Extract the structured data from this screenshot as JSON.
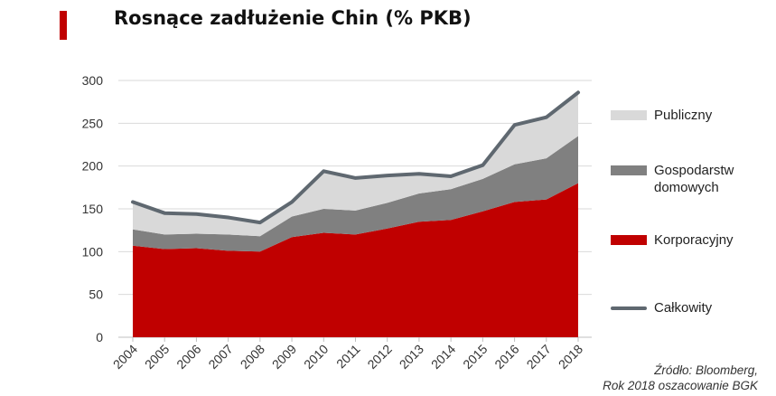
{
  "title": "Rosnące zadłużenie Chin (% PKB)",
  "source_line1": "Źródło: Bloomberg,",
  "source_line2": "Rok 2018 oszacowanie BGK",
  "colors": {
    "accent": "#c00000",
    "public": "#d9d9d9",
    "households": "#808080",
    "corporate": "#c00000",
    "total": "#5f6870"
  },
  "chart_data": {
    "type": "area",
    "title": "Rosnące zadłużenie Chin (% PKB)",
    "x": [
      "2004",
      "2005",
      "2006",
      "2007",
      "2008",
      "2009",
      "2010",
      "2011",
      "2012",
      "2013",
      "2014",
      "2015",
      "2016",
      "2017",
      "2018"
    ],
    "ylim": [
      0,
      300
    ],
    "yticks": [
      0,
      50,
      100,
      150,
      200,
      250,
      300
    ],
    "stacked": true,
    "legend_position": "right",
    "grid": "horizontal",
    "series": [
      {
        "name": "Korporacyjny",
        "kind": "area",
        "color": "#c00000",
        "values": [
          107,
          103,
          104,
          101,
          100,
          117,
          122,
          120,
          127,
          135,
          137,
          147,
          158,
          161,
          180
        ]
      },
      {
        "name": "Gospodarstw domowych",
        "kind": "area",
        "color": "#808080",
        "values": [
          19,
          17,
          17,
          19,
          18,
          24,
          28,
          28,
          30,
          33,
          36,
          38,
          44,
          48,
          55
        ]
      },
      {
        "name": "Publiczny",
        "kind": "area",
        "color": "#d9d9d9",
        "values": [
          32,
          25,
          23,
          20,
          16,
          17,
          44,
          38,
          32,
          23,
          15,
          16,
          46,
          48,
          51
        ]
      },
      {
        "name": "Całkowity",
        "kind": "line",
        "color": "#5f6870",
        "values": [
          158,
          145,
          144,
          140,
          134,
          158,
          194,
          186,
          189,
          191,
          188,
          201,
          248,
          257,
          286
        ]
      }
    ]
  },
  "legend": [
    {
      "label": "Publiczny",
      "color": "#d9d9d9",
      "kind": "area"
    },
    {
      "label": "Gospodarstw\ndomowych",
      "color": "#808080",
      "kind": "area"
    },
    {
      "label": "Korporacyjny",
      "color": "#c00000",
      "kind": "area"
    },
    {
      "label": "Całkowity",
      "color": "#5f6870",
      "kind": "line"
    }
  ]
}
